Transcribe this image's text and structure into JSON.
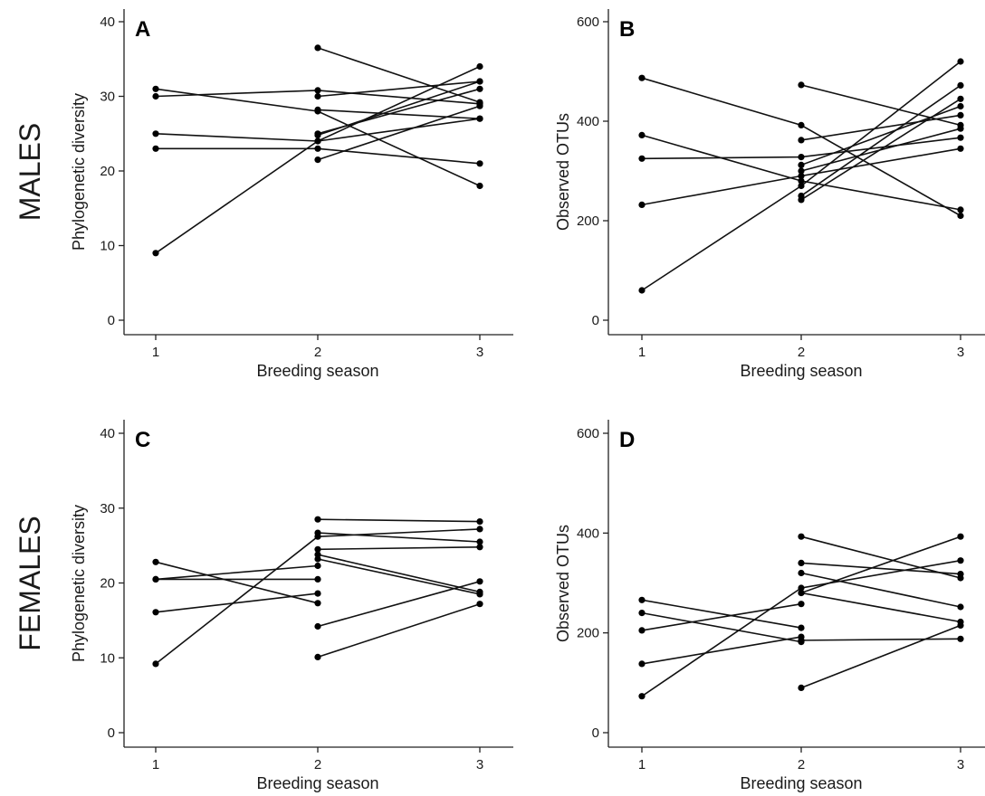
{
  "row_labels": [
    "MALES",
    "FEMALES"
  ],
  "chart_data": [
    {
      "type": "line",
      "panel": "A",
      "xlabel": "Breeding season",
      "ylabel": "Phylogenetic diversity",
      "x": [
        1,
        2,
        3
      ],
      "xticks": [
        "1",
        "2",
        "3"
      ],
      "ylim": [
        0,
        40
      ],
      "yticks": [
        0,
        10,
        20,
        30,
        40
      ],
      "series": [
        {
          "values": [
            31,
            28,
            18
          ]
        },
        {
          "values": [
            30,
            30.8,
            29
          ]
        },
        {
          "values": [
            25,
            24,
            27
          ]
        },
        {
          "values": [
            23,
            23,
            21
          ]
        },
        {
          "values": [
            9,
            24,
            34
          ]
        },
        {
          "values": [
            null,
            36.5,
            29.2
          ]
        },
        {
          "values": [
            null,
            28.2,
            27
          ]
        },
        {
          "values": [
            null,
            21.5,
            28.7
          ]
        },
        {
          "values": [
            null,
            24.8,
            32
          ]
        },
        {
          "values": [
            null,
            25,
            31
          ]
        },
        {
          "values": [
            null,
            30,
            32
          ]
        }
      ]
    },
    {
      "type": "line",
      "panel": "B",
      "xlabel": "Breeding season",
      "ylabel": "Observed OTUs",
      "x": [
        1,
        2,
        3
      ],
      "xticks": [
        "1",
        "2",
        "3"
      ],
      "ylim": [
        0,
        600
      ],
      "yticks": [
        0,
        200,
        400,
        600
      ],
      "series": [
        {
          "values": [
            487,
            392,
            210
          ]
        },
        {
          "values": [
            372,
            280,
            222
          ]
        },
        {
          "values": [
            325,
            328,
            367
          ]
        },
        {
          "values": [
            232,
            290,
            345
          ]
        },
        {
          "values": [
            60,
            270,
            520
          ]
        },
        {
          "values": [
            null,
            473,
            392
          ]
        },
        {
          "values": [
            null,
            362,
            412
          ]
        },
        {
          "values": [
            null,
            250,
            472
          ]
        },
        {
          "values": [
            null,
            242,
            445
          ]
        },
        {
          "values": [
            null,
            312,
            430
          ]
        },
        {
          "values": [
            null,
            300,
            385
          ]
        }
      ]
    },
    {
      "type": "line",
      "panel": "C",
      "xlabel": "Breeding season",
      "ylabel": "Phylogenetic diversity",
      "x": [
        1,
        2,
        3
      ],
      "xticks": [
        "1",
        "2",
        "3"
      ],
      "ylim": [
        0,
        40
      ],
      "yticks": [
        0,
        10,
        20,
        30,
        40
      ],
      "series": [
        {
          "values": [
            22.8,
            17.3,
            null
          ]
        },
        {
          "values": [
            20.5,
            20.5,
            null
          ]
        },
        {
          "values": [
            20.5,
            22.3,
            null
          ]
        },
        {
          "values": [
            16.1,
            18.6,
            null
          ]
        },
        {
          "values": [
            9.2,
            26.2,
            27.2
          ]
        },
        {
          "values": [
            null,
            28.5,
            28.2
          ]
        },
        {
          "values": [
            null,
            26.7,
            25.5
          ]
        },
        {
          "values": [
            null,
            24.5,
            24.8
          ]
        },
        {
          "values": [
            null,
            23.8,
            18.8
          ]
        },
        {
          "values": [
            null,
            23.2,
            18.5
          ]
        },
        {
          "values": [
            null,
            14.2,
            20.2
          ]
        },
        {
          "values": [
            null,
            10.1,
            17.2
          ]
        }
      ]
    },
    {
      "type": "line",
      "panel": "D",
      "xlabel": "Breeding season",
      "ylabel": "Observed OTUs",
      "x": [
        1,
        2,
        3
      ],
      "xticks": [
        "1",
        "2",
        "3"
      ],
      "ylim": [
        0,
        600
      ],
      "yticks": [
        0,
        200,
        400,
        600
      ],
      "series": [
        {
          "values": [
            266,
            210,
            null
          ]
        },
        {
          "values": [
            240,
            182,
            null
          ]
        },
        {
          "values": [
            205,
            258,
            null
          ]
        },
        {
          "values": [
            138,
            192,
            null
          ]
        },
        {
          "values": [
            73,
            290,
            345
          ]
        },
        {
          "values": [
            null,
            393,
            310
          ]
        },
        {
          "values": [
            null,
            340,
            318
          ]
        },
        {
          "values": [
            null,
            320,
            252
          ]
        },
        {
          "values": [
            null,
            280,
            222
          ]
        },
        {
          "values": [
            null,
            185,
            188
          ]
        },
        {
          "values": [
            null,
            90,
            215
          ]
        },
        {
          "values": [
            null,
            280,
            393
          ]
        }
      ]
    }
  ]
}
